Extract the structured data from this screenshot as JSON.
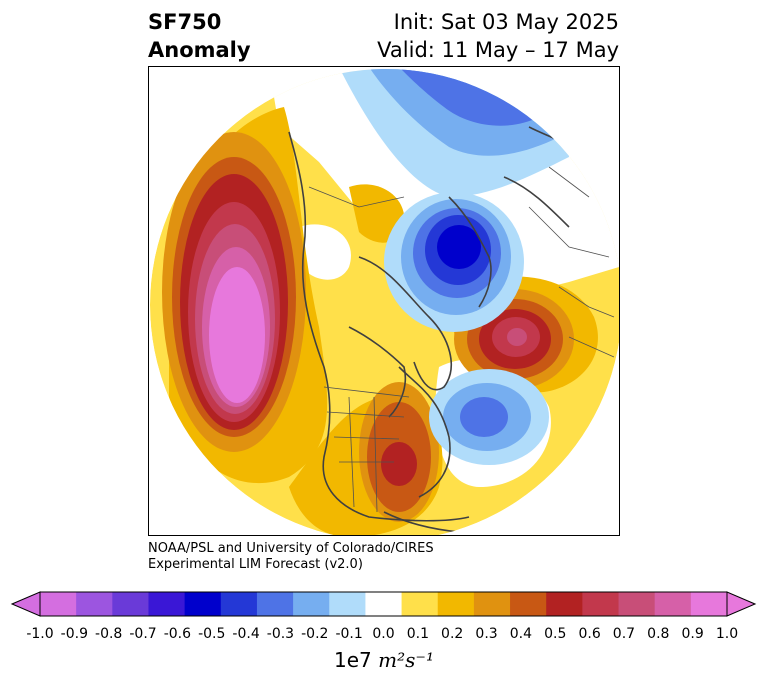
{
  "title": {
    "line1": "SF750",
    "line2": "Anomaly"
  },
  "init": "Init: Sat 03 May 2025",
  "valid": "Valid: 11 May – 17 May",
  "credit": {
    "line1": "NOAA/PSL and University of Colorado/CIRES",
    "line2": "Experimental LIM Forecast (v2.0)"
  },
  "colorbar": {
    "ticks": [
      "-1.0",
      "-0.9",
      "-0.8",
      "-0.7",
      "-0.6",
      "-0.5",
      "-0.4",
      "-0.3",
      "-0.2",
      "-0.1",
      "0.0",
      "0.1",
      "0.2",
      "0.3",
      "0.4",
      "0.5",
      "0.6",
      "0.7",
      "0.8",
      "0.9",
      "1.0"
    ],
    "colors": [
      "#d46ee0",
      "#9c55e0",
      "#6a3ad8",
      "#3a17d6",
      "#0000cc",
      "#2438d6",
      "#4e73e6",
      "#76aef0",
      "#b0dcfa",
      "#ffffff",
      "#ffe04a",
      "#f2b800",
      "#e09210",
      "#c85814",
      "#b22222",
      "#c2384c",
      "#c84e78",
      "#d660a8",
      "#e778dc"
    ],
    "under_color": "#d46ee0",
    "over_color": "#e778dc",
    "units_prefix": "1e7",
    "units_math": "m²s⁻¹"
  },
  "anomalies": [
    {
      "name": "pacific-ridge",
      "level": 0.9
    },
    {
      "name": "arctic-low",
      "level": -0.6
    },
    {
      "name": "atlantic-ridge",
      "level": 0.7
    },
    {
      "name": "atlantic-low",
      "level": -0.4
    },
    {
      "name": "eastern-us-ridge",
      "level": 0.6
    }
  ]
}
